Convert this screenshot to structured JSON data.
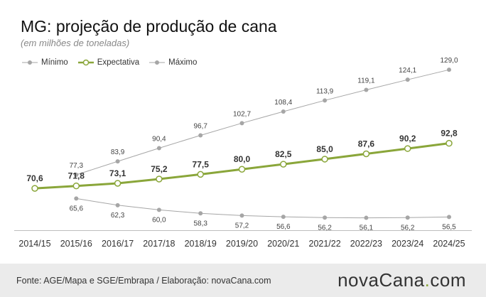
{
  "title": "MG: projeção de produção de cana",
  "subtitle": "(em milhões de toneladas)",
  "source": "Fonte: AGE/Mapa e SGE/Embrapa / Elaboração: novaCana.com",
  "logo": {
    "part1": "nova",
    "part2": "Cana",
    "dot": ".",
    "part3": "com"
  },
  "colors": {
    "expectativa": "#8aa63a",
    "range": "#a6a6a6",
    "footer_bg": "#ebebeb"
  },
  "chart_data": {
    "type": "line",
    "categories": [
      "2014/15",
      "2015/16",
      "2016/17",
      "2017/18",
      "2018/19",
      "2019/20",
      "2020/21",
      "2021/22",
      "2022/23",
      "2023/24",
      "2024/25"
    ],
    "ylim": [
      50,
      135
    ],
    "grid": false,
    "legend_position": "top-left",
    "series": [
      {
        "key": "minimo",
        "name": "Mínimo",
        "color": "#a6a6a6",
        "values": [
          null,
          65.6,
          62.3,
          60.0,
          58.3,
          57.2,
          56.6,
          56.2,
          56.1,
          56.2,
          56.5
        ],
        "labels": [
          null,
          "65,6",
          "62,3",
          "60,0",
          "58,3",
          "57,2",
          "56,6",
          "56,2",
          "56,1",
          "56,2",
          "56,5"
        ]
      },
      {
        "key": "expectativa",
        "name": "Expectativa",
        "color": "#8aa63a",
        "values": [
          70.6,
          71.8,
          73.1,
          75.2,
          77.5,
          80.0,
          82.5,
          85.0,
          87.6,
          90.2,
          92.8
        ],
        "labels": [
          "70,6",
          "71,8",
          "73,1",
          "75,2",
          "77,5",
          "80,0",
          "82,5",
          "85,0",
          "87,6",
          "90,2",
          "92,8"
        ]
      },
      {
        "key": "maximo",
        "name": "Máximo",
        "color": "#a6a6a6",
        "values": [
          null,
          77.3,
          83.9,
          90.4,
          96.7,
          102.7,
          108.4,
          113.9,
          119.1,
          124.1,
          129.0
        ],
        "labels": [
          null,
          "77,3",
          "83,9",
          "90,4",
          "96,7",
          "102,7",
          "108,4",
          "113,9",
          "119,1",
          "124,1",
          "129,0"
        ]
      }
    ]
  }
}
